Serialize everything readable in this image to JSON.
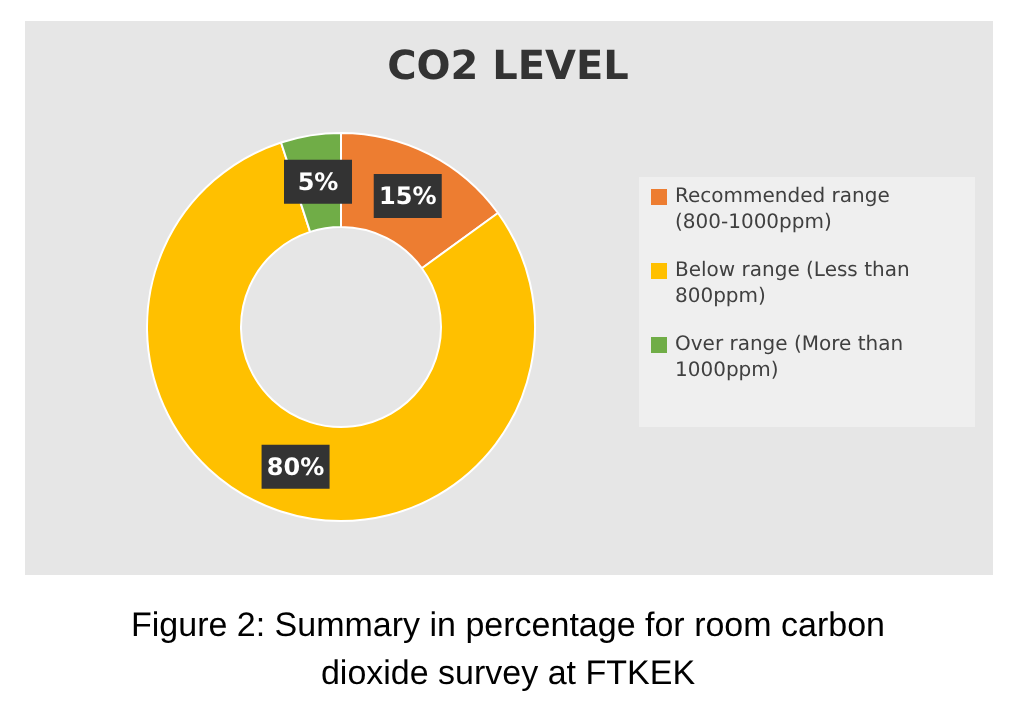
{
  "chart_data": {
    "type": "donut",
    "title": "CO2 LEVEL",
    "categories": [
      "Recommended range (800-1000ppm)",
      "Below range (Less than 800ppm)",
      "Over range (More than 1000ppm)"
    ],
    "values": [
      15,
      80,
      5
    ],
    "colors": [
      "#ed7d31",
      "#ffc000",
      "#70ad47"
    ],
    "value_labels": [
      "15%",
      "80%",
      "5%"
    ],
    "legend": "right",
    "annotations": [
      "Figure 2: Summary in percentage for room carbon dioxide survey at FTKEK"
    ]
  }
}
